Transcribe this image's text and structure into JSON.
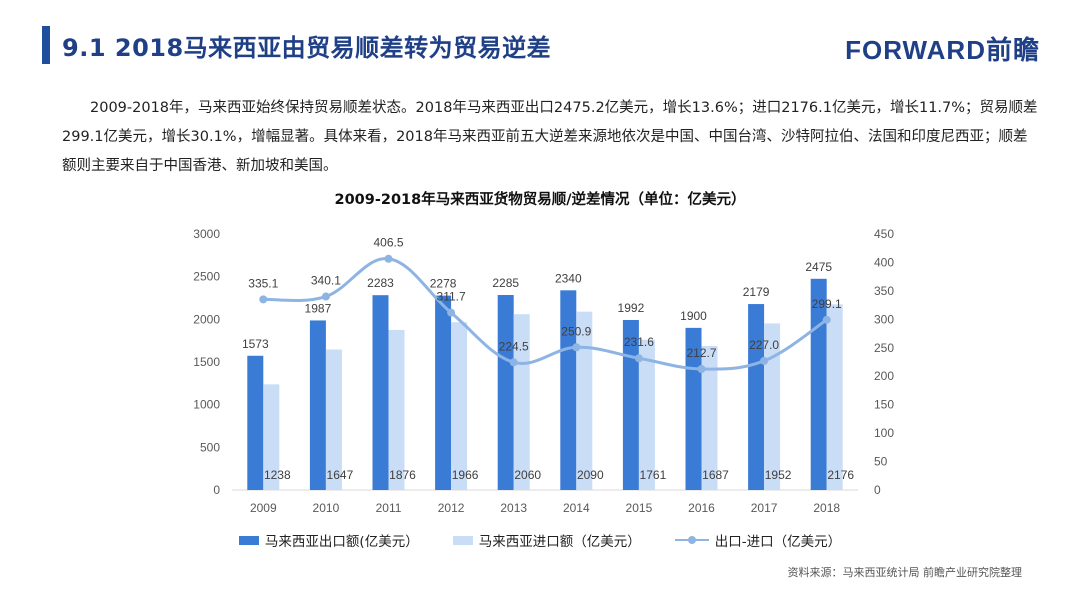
{
  "header": {
    "title": "9.1 2018马来西亚由贸易顺差转为贸易逆差",
    "logo": "FORWARD前瞻"
  },
  "body_text": "2009-2018年，马来西亚始终保持贸易顺差状态。2018年马来西亚出口2475.2亿美元，增长13.6%；进口2176.1亿美元，增长11.7%；贸易顺差299.1亿美元，增长30.1%，增幅显著。具体来看，2018年马来西亚前五大逆差来源地依次是中国、中国台湾、沙特阿拉伯、法国和印度尼西亚；顺差额则主要来自于中国香港、新加坡和美国。",
  "chart_data": {
    "type": "bar",
    "title": "2009-2018年马来西亚货物贸易顺/逆差情况（单位：亿美元）",
    "categories": [
      "2009",
      "2010",
      "2011",
      "2012",
      "2013",
      "2014",
      "2015",
      "2016",
      "2017",
      "2018"
    ],
    "ylim_left": [
      0,
      3000
    ],
    "yticks_left": [
      0,
      500,
      1000,
      1500,
      2000,
      2500,
      3000
    ],
    "ylim_right": [
      0,
      450
    ],
    "yticks_right": [
      0,
      50,
      100,
      150,
      200,
      250,
      300,
      350,
      400,
      450
    ],
    "series": [
      {
        "name": "马来西亚出口额(亿美元）",
        "type": "bar",
        "axis": "left",
        "color": "#3a7bd5",
        "values": [
          1573,
          1987,
          2283,
          2278,
          2285,
          2340,
          1992,
          1900,
          2179,
          2475
        ]
      },
      {
        "name": "马来西亚进口额（亿美元）",
        "type": "bar",
        "axis": "left",
        "color": "#c9ddf6",
        "values": [
          1238,
          1647,
          1876,
          1966,
          2060,
          2090,
          1761,
          1687,
          1952,
          2176
        ]
      },
      {
        "name": "出口-进口（亿美元）",
        "type": "line",
        "axis": "right",
        "color": "#8eb4e3",
        "values": [
          335.1,
          340.1,
          406.5,
          311.7,
          224.5,
          250.9,
          231.6,
          212.7,
          227.0,
          299.1
        ]
      }
    ],
    "grid": false,
    "legend_position": "bottom"
  },
  "source": "资料来源：马来西亚统计局  前瞻产业研究院整理"
}
